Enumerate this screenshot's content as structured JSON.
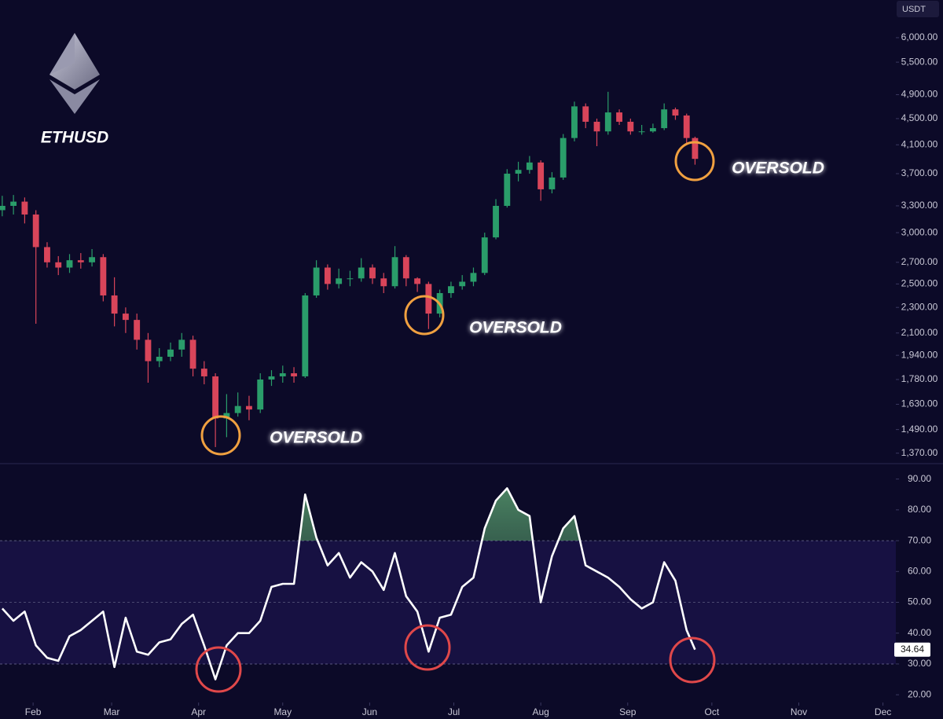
{
  "chart_data": [
    {
      "type": "candlestick",
      "title": "ETHUSD",
      "unit": "USDT",
      "log_scale": true,
      "annotations": [
        "OVERSOLD",
        "OVERSOLD",
        "OVERSOLD"
      ],
      "up_color": "#2a9d6a",
      "down_color": "#d9455a",
      "xlim": [
        20.2,
        339.6
      ],
      "x": [
        21,
        25,
        29,
        33,
        37,
        41,
        45,
        49,
        53,
        57,
        61,
        65,
        69,
        73,
        77,
        81,
        85,
        89,
        93,
        97,
        101,
        105,
        109,
        113,
        117,
        121,
        125,
        129,
        133,
        137,
        141,
        145,
        149,
        153,
        157,
        161,
        165,
        169,
        173,
        177,
        181,
        185,
        189,
        193,
        197,
        201,
        205,
        209,
        213,
        217,
        221,
        225,
        229,
        233,
        237,
        241,
        245,
        249,
        253,
        257,
        261,
        265,
        268
      ],
      "open": [
        3250,
        3300,
        3350,
        3200,
        2850,
        2700,
        2650,
        2720,
        2700,
        2750,
        2400,
        2250,
        2200,
        2050,
        1900,
        1930,
        1980,
        2050,
        1850,
        1800,
        1550,
        1580,
        1620,
        1600,
        1780,
        1800,
        1820,
        1800,
        2400,
        2650,
        2500,
        2550,
        2550,
        2650,
        2550,
        2480,
        2750,
        2550,
        2500,
        2250,
        2420,
        2480,
        2520,
        2600,
        2950,
        3300,
        3700,
        3750,
        3850,
        3500,
        3650,
        4200,
        4700,
        4450,
        4300,
        4600,
        4450,
        4300,
        4300,
        4350,
        4650,
        4550,
        4200
      ],
      "high": [
        3420,
        3430,
        3400,
        3250,
        2900,
        2760,
        2780,
        2790,
        2830,
        2780,
        2560,
        2300,
        2250,
        2100,
        1990,
        2030,
        2100,
        2080,
        1900,
        1820,
        1690,
        1700,
        1680,
        1820,
        1840,
        1870,
        1860,
        2420,
        2720,
        2680,
        2640,
        2620,
        2740,
        2680,
        2600,
        2860,
        2770,
        2560,
        2520,
        2450,
        2520,
        2580,
        2650,
        3000,
        3380,
        3760,
        3860,
        3940,
        3880,
        3720,
        4260,
        4780,
        4750,
        4500,
        4950,
        4650,
        4500,
        4400,
        4420,
        4750,
        4680,
        4580,
        4220
      ],
      "low": [
        3180,
        3200,
        3100,
        2170,
        2650,
        2580,
        2600,
        2640,
        2660,
        2350,
        2150,
        2100,
        1980,
        1760,
        1860,
        1900,
        1930,
        1800,
        1750,
        1400,
        1450,
        1560,
        1540,
        1580,
        1740,
        1760,
        1760,
        1790,
        2380,
        2450,
        2460,
        2480,
        2520,
        2500,
        2420,
        2460,
        2480,
        2430,
        2130,
        2220,
        2380,
        2450,
        2480,
        2580,
        2930,
        3280,
        3600,
        3700,
        3360,
        3450,
        3620,
        4150,
        4350,
        4080,
        4250,
        4400,
        4250,
        4250,
        4280,
        4320,
        4480,
        4100,
        3820
      ],
      "close": [
        3300,
        3350,
        3200,
        2850,
        2700,
        2650,
        2720,
        2700,
        2750,
        2400,
        2250,
        2200,
        2050,
        1900,
        1930,
        1980,
        2050,
        1850,
        1800,
        1550,
        1580,
        1620,
        1600,
        1780,
        1800,
        1820,
        1800,
        2400,
        2650,
        2500,
        2550,
        2550,
        2650,
        2550,
        2480,
        2750,
        2550,
        2500,
        2250,
        2420,
        2480,
        2520,
        2600,
        2950,
        3300,
        3700,
        3750,
        3850,
        3500,
        3650,
        4200,
        4700,
        4450,
        4300,
        4600,
        4450,
        4300,
        4300,
        4350,
        4650,
        4550,
        4200,
        3900
      ],
      "ylim": [
        1320,
        6860
      ],
      "yticks": [
        {
          "value": 1370,
          "label": "1,370.00"
        },
        {
          "value": 1490,
          "label": "1,490.00"
        },
        {
          "value": 1630,
          "label": "1,630.00"
        },
        {
          "value": 1780,
          "label": "1,780.00"
        },
        {
          "value": 1940,
          "label": "1,940.00"
        },
        {
          "value": 2100,
          "label": "2,100.00"
        },
        {
          "value": 2300,
          "label": "2,300.00"
        },
        {
          "value": 2500,
          "label": "2,500.00"
        },
        {
          "value": 2700,
          "label": "2,700.00"
        },
        {
          "value": 3000,
          "label": "3,000.00"
        },
        {
          "value": 3300,
          "label": "3,300.00"
        },
        {
          "value": 3700,
          "label": "3,700.00"
        },
        {
          "value": 4100,
          "label": "4,100.00"
        },
        {
          "value": 4500,
          "label": "4,500.00"
        },
        {
          "value": 4900,
          "label": "4,900.00"
        },
        {
          "value": 5500,
          "label": "5,500.00"
        },
        {
          "value": 6000,
          "label": "6,000.00"
        }
      ]
    },
    {
      "type": "line",
      "color": "#ffffff",
      "band": [
        30,
        70
      ],
      "midline": 50,
      "overbought_color": "#3f7a55",
      "xlim": [
        20.2,
        339.6
      ],
      "x": [
        21,
        25,
        29,
        33,
        37,
        41,
        45,
        49,
        53,
        57,
        61,
        65,
        69,
        73,
        77,
        81,
        85,
        89,
        93,
        97,
        101,
        105,
        109,
        113,
        117,
        121,
        125,
        129,
        133,
        137,
        141,
        145,
        149,
        153,
        157,
        161,
        165,
        169,
        173,
        177,
        181,
        185,
        189,
        193,
        197,
        201,
        205,
        209,
        213,
        217,
        221,
        225,
        229,
        233,
        237,
        241,
        245,
        249,
        253,
        257,
        261,
        265,
        268
      ],
      "values": [
        48,
        44,
        47,
        36,
        32,
        31,
        39,
        41,
        44,
        47,
        29,
        45,
        34,
        33,
        37,
        38,
        43,
        46,
        36,
        25,
        36,
        40,
        40,
        44,
        55,
        56,
        56,
        85,
        71,
        62,
        66,
        58,
        63,
        60,
        54,
        66,
        52,
        47,
        34,
        45,
        46,
        55,
        58,
        74,
        83,
        87,
        80,
        78,
        50,
        65,
        74,
        78,
        62,
        60,
        58,
        55,
        51,
        48,
        50,
        63,
        57,
        41,
        34.64
      ],
      "ylim": [
        18,
        94.5
      ],
      "yticks": [
        {
          "value": 20,
          "label": "20.00"
        },
        {
          "value": 30,
          "label": "30.00"
        },
        {
          "value": 40,
          "label": "40.00"
        },
        {
          "value": 50,
          "label": "50.00"
        },
        {
          "value": 60,
          "label": "60.00"
        },
        {
          "value": 70,
          "label": "70.00"
        },
        {
          "value": 80,
          "label": "80.00"
        },
        {
          "value": 90,
          "label": "90.00"
        }
      ],
      "xticks": [
        {
          "value": 32,
          "label": "Feb"
        },
        {
          "value": 60,
          "label": "Mar"
        },
        {
          "value": 91,
          "label": "Apr"
        },
        {
          "value": 121,
          "label": "May"
        },
        {
          "value": 152,
          "label": "Jun"
        },
        {
          "value": 182,
          "label": "Jul"
        },
        {
          "value": 213,
          "label": "Aug"
        },
        {
          "value": 244,
          "label": "Sep"
        },
        {
          "value": 274,
          "label": "Oct"
        },
        {
          "value": 305,
          "label": "Nov"
        },
        {
          "value": 335,
          "label": "Dec"
        }
      ]
    }
  ]
}
